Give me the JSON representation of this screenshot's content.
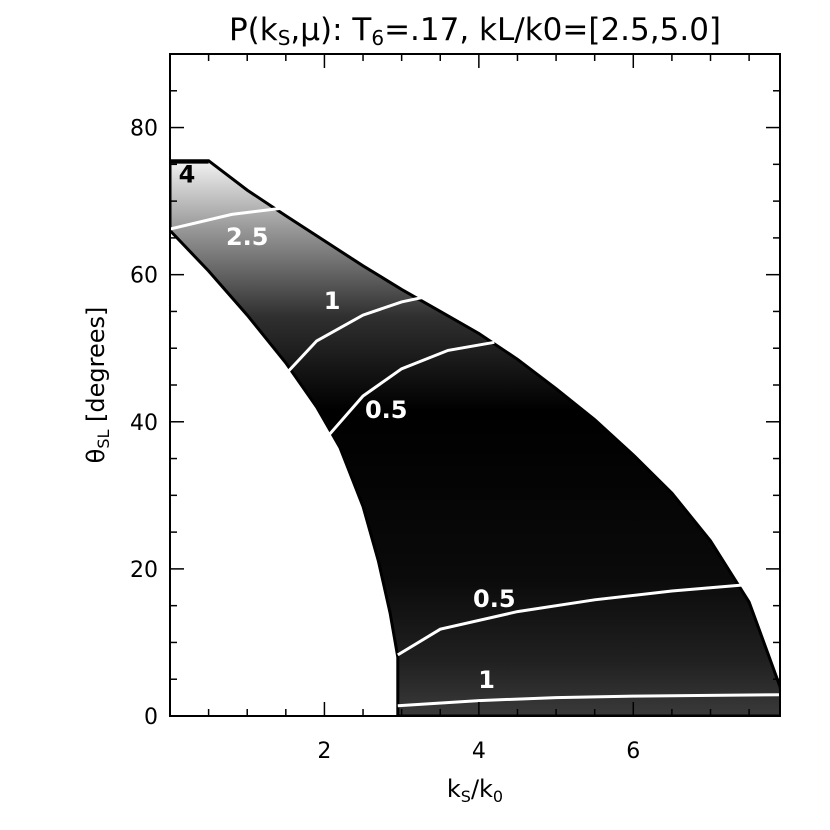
{
  "chart_data": {
    "type": "heatmap",
    "title": "P(k",
    "title_sub": "S",
    "title_rest": ",μ): T",
    "title_sub2": "6",
    "title_tail": "=.17, kL/k0=[2.5,5.0]",
    "xlabel": "k",
    "xlabel_sub": "S",
    "xlabel_mid": "/k",
    "xlabel_sub2": "0",
    "ylabel": "θ",
    "ylabel_sub": "SL",
    "ylabel_rest": " [degrees]",
    "xlim": [
      0,
      7.9
    ],
    "ylim": [
      0,
      80
    ],
    "x_ticks": [
      2,
      4,
      6
    ],
    "y_ticks": [
      0,
      20,
      40,
      60,
      80
    ],
    "colormap": "grayscale",
    "region": {
      "upper_boundary": [
        [
          0.0,
          75.5
        ],
        [
          0.5,
          75.5
        ],
        [
          1.0,
          71.5
        ],
        [
          1.5,
          68.0
        ],
        [
          2.0,
          64.6
        ],
        [
          2.5,
          61.2
        ],
        [
          3.0,
          58.0
        ],
        [
          3.5,
          55.0
        ],
        [
          4.0,
          52.0
        ],
        [
          4.5,
          48.5
        ],
        [
          5.0,
          44.5
        ],
        [
          5.5,
          40.3
        ],
        [
          6.0,
          35.5
        ],
        [
          6.5,
          30.3
        ],
        [
          7.0,
          23.8
        ],
        [
          7.5,
          15.5
        ],
        [
          7.9,
          4.0
        ],
        [
          7.95,
          0.0
        ]
      ],
      "lower_boundary": [
        [
          2.95,
          0.0
        ],
        [
          2.95,
          8.0
        ],
        [
          2.85,
          14.0
        ],
        [
          2.7,
          21.0
        ],
        [
          2.5,
          28.5
        ],
        [
          2.2,
          36.5
        ],
        [
          1.9,
          42.0
        ],
        [
          1.5,
          48.0
        ],
        [
          1.0,
          54.5
        ],
        [
          0.5,
          60.5
        ],
        [
          0.0,
          66.0
        ]
      ]
    },
    "contours": [
      {
        "label": "4",
        "points": [
          [
            0.0,
            75.3
          ],
          [
            0.5,
            75.3
          ]
        ],
        "label_at": [
          0.22,
          72.5
        ]
      },
      {
        "label": "2.5",
        "points": [
          [
            0.0,
            66.2
          ],
          [
            0.8,
            68.2
          ],
          [
            1.5,
            69.1
          ]
        ],
        "label_at": [
          1.0,
          64.0
        ]
      },
      {
        "label": "1",
        "points": [
          [
            1.5,
            46.5
          ],
          [
            1.9,
            51.0
          ],
          [
            2.5,
            54.5
          ],
          [
            3.0,
            56.3
          ],
          [
            3.4,
            57.2
          ]
        ],
        "label_at": [
          2.1,
          55.3
        ]
      },
      {
        "label": "0.5",
        "points": [
          [
            2.0,
            37.5
          ],
          [
            2.5,
            43.5
          ],
          [
            3.0,
            47.2
          ],
          [
            3.6,
            49.7
          ],
          [
            4.2,
            50.8
          ]
        ],
        "label_at": [
          2.8,
          40.5
        ]
      },
      {
        "label": "0.5",
        "points": [
          [
            2.95,
            8.3
          ],
          [
            3.5,
            11.8
          ],
          [
            4.5,
            14.2
          ],
          [
            5.5,
            15.8
          ],
          [
            6.5,
            17.0
          ],
          [
            7.4,
            17.8
          ]
        ],
        "label_at": [
          4.2,
          14.8
        ]
      },
      {
        "label": "1",
        "points": [
          [
            2.95,
            1.4
          ],
          [
            4.0,
            2.1
          ],
          [
            5.0,
            2.5
          ],
          [
            6.0,
            2.7
          ],
          [
            7.0,
            2.8
          ],
          [
            7.9,
            2.9
          ]
        ],
        "label_at": [
          4.1,
          3.8
        ]
      }
    ]
  }
}
